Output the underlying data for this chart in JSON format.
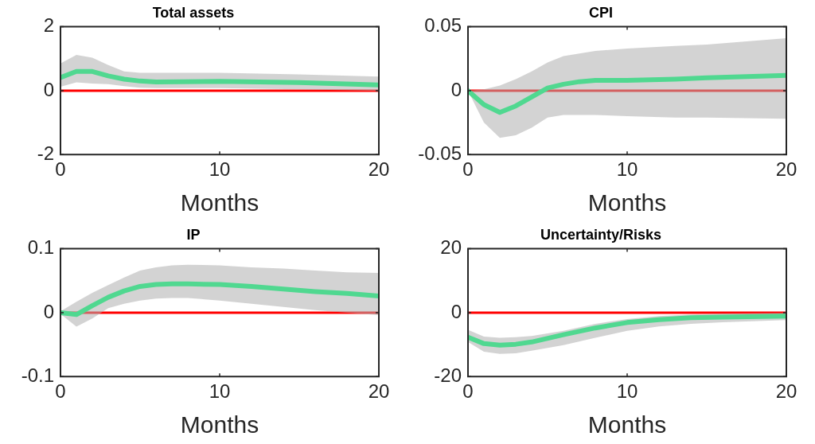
{
  "chart_data": [
    {
      "type": "line",
      "title": "Total assets",
      "xlabel": "Months",
      "xlim": [
        0,
        20
      ],
      "xticks": [
        0,
        10,
        20
      ],
      "ylim": [
        -2,
        2
      ],
      "yticks": [
        -2,
        0,
        2
      ],
      "grid": false,
      "legend": false,
      "marker": "none",
      "line_style": "solid",
      "ref_lines": [
        {
          "axis": "y",
          "value": 0,
          "color": "#ff0000"
        }
      ],
      "series": [
        {
          "color": "#50d890",
          "x": [
            0,
            1,
            2,
            3,
            4,
            5,
            6,
            10,
            15,
            20
          ],
          "values": [
            0.41,
            0.6,
            0.6,
            0.46,
            0.36,
            0.3,
            0.27,
            0.29,
            0.25,
            0.18
          ],
          "upper": [
            0.85,
            1.12,
            1.03,
            0.8,
            0.6,
            0.56,
            0.56,
            0.56,
            0.51,
            0.44
          ],
          "lower": [
            0.12,
            0.26,
            0.22,
            0.2,
            0.14,
            0.09,
            0.08,
            0.08,
            0.04,
            -0.01
          ]
        }
      ]
    },
    {
      "type": "line",
      "title": "CPI",
      "xlabel": "Months",
      "xlim": [
        0,
        20
      ],
      "xticks": [
        0,
        10,
        20
      ],
      "ylim": [
        -0.05,
        0.05
      ],
      "yticks": [
        -0.05,
        0,
        0.05
      ],
      "grid": false,
      "legend": false,
      "marker": "none",
      "line_style": "solid",
      "ref_lines": [
        {
          "axis": "y",
          "value": 0,
          "color": "#ff0000"
        }
      ],
      "series": [
        {
          "color": "#50d890",
          "x": [
            0,
            1,
            2,
            3,
            4,
            5,
            6,
            7,
            8,
            10,
            13,
            15,
            20
          ],
          "values": [
            0,
            -0.011,
            -0.017,
            -0.012,
            -0.005,
            0.002,
            0.005,
            0.007,
            0.008,
            0.008,
            0.009,
            0.01,
            0.012
          ],
          "upper": [
            0,
            0.001,
            0.004,
            0.009,
            0.015,
            0.022,
            0.027,
            0.029,
            0.031,
            0.033,
            0.035,
            0.036,
            0.041
          ],
          "lower": [
            0,
            -0.025,
            -0.037,
            -0.035,
            -0.029,
            -0.021,
            -0.019,
            -0.019,
            -0.019,
            -0.02,
            -0.021,
            -0.021,
            -0.022
          ]
        }
      ]
    },
    {
      "type": "line",
      "title": "IP",
      "xlabel": "Months",
      "xlim": [
        0,
        20
      ],
      "xticks": [
        0,
        10,
        20
      ],
      "ylim": [
        -0.1,
        0.1
      ],
      "yticks": [
        -0.1,
        0,
        0.1
      ],
      "grid": false,
      "legend": false,
      "marker": "none",
      "line_style": "solid",
      "ref_lines": [
        {
          "axis": "y",
          "value": 0,
          "color": "#ff0000"
        }
      ],
      "series": [
        {
          "color": "#50d890",
          "x": [
            0,
            1,
            2,
            3,
            4,
            5,
            6,
            7,
            8,
            10,
            12,
            14,
            16,
            18,
            20
          ],
          "values": [
            0,
            -0.003,
            0.011,
            0.024,
            0.034,
            0.041,
            0.044,
            0.045,
            0.045,
            0.044,
            0.041,
            0.037,
            0.033,
            0.03,
            0.026
          ],
          "upper": [
            0.002,
            0.017,
            0.031,
            0.043,
            0.055,
            0.066,
            0.071,
            0.074,
            0.075,
            0.074,
            0.071,
            0.069,
            0.066,
            0.063,
            0.062
          ],
          "lower": [
            -0.002,
            -0.022,
            -0.009,
            0.007,
            0.014,
            0.019,
            0.022,
            0.023,
            0.023,
            0.019,
            0.014,
            0.009,
            0.004,
            0,
            -0.004
          ]
        }
      ]
    },
    {
      "type": "line",
      "title": "Uncertainty/Risks",
      "xlabel": "Months",
      "xlim": [
        0,
        20
      ],
      "xticks": [
        0,
        10,
        20
      ],
      "ylim": [
        -20,
        20
      ],
      "yticks": [
        -20,
        0,
        20
      ],
      "grid": false,
      "legend": false,
      "marker": "none",
      "line_style": "solid",
      "ref_lines": [
        {
          "axis": "y",
          "value": 0,
          "color": "#ff0000"
        }
      ],
      "series": [
        {
          "color": "#50d890",
          "x": [
            0,
            1,
            2,
            3,
            4,
            6,
            8,
            10,
            12,
            14,
            16,
            20
          ],
          "values": [
            -7.7,
            -9.7,
            -10.2,
            -9.9,
            -9.2,
            -6.9,
            -4.8,
            -3.1,
            -2.2,
            -1.6,
            -1.4,
            -1.1
          ],
          "upper": [
            -5.4,
            -7.5,
            -7.9,
            -7.7,
            -7.3,
            -5.7,
            -3.5,
            -2,
            -1.1,
            -0.6,
            -0.3,
            -0.1
          ],
          "lower": [
            -9.2,
            -12.2,
            -12.9,
            -12.7,
            -11.9,
            -10.2,
            -7.9,
            -5.7,
            -4.3,
            -3.5,
            -3,
            -2.3
          ]
        }
      ]
    }
  ]
}
